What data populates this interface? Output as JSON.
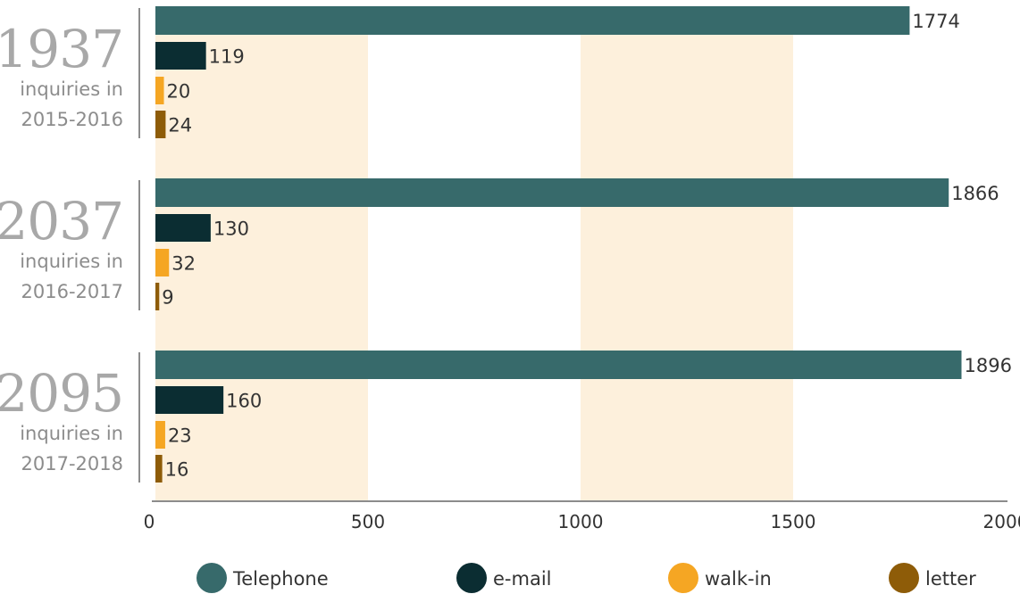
{
  "chart_data": {
    "type": "bar",
    "orientation": "horizontal",
    "title": "",
    "xlabel": "",
    "ylabel": "",
    "xlim": [
      0,
      2000
    ],
    "x_ticks": [
      "0",
      "500",
      "1000",
      "1500",
      "2000"
    ],
    "grid": false,
    "banded_background": true,
    "legend_position": "bottom",
    "groups": [
      {
        "total": "1937",
        "label_line1": "inquiries in",
        "label_line2": "2015-2016",
        "values": [
          1774,
          119,
          20,
          24
        ]
      },
      {
        "total": "2037",
        "label_line1": "inquiries in",
        "label_line2": "2016-2017",
        "values": [
          1866,
          130,
          32,
          9
        ]
      },
      {
        "total": "2095",
        "label_line1": "inquiries in",
        "label_line2": "2017-2018",
        "values": [
          1896,
          160,
          23,
          16
        ]
      }
    ],
    "series": [
      {
        "name": "Telephone",
        "color": "#376a6b"
      },
      {
        "name": "e-mail",
        "color": "#0b2d32"
      },
      {
        "name": "walk-in",
        "color": "#f5a623"
      },
      {
        "name": "letter",
        "color": "#8e5c08"
      }
    ],
    "band_color": "#fdf0dc",
    "axis_color": "#8c8c8c",
    "text_color": "#333333",
    "total_color": "#a8a8a8",
    "group_label_color": "#8c8c8c"
  }
}
